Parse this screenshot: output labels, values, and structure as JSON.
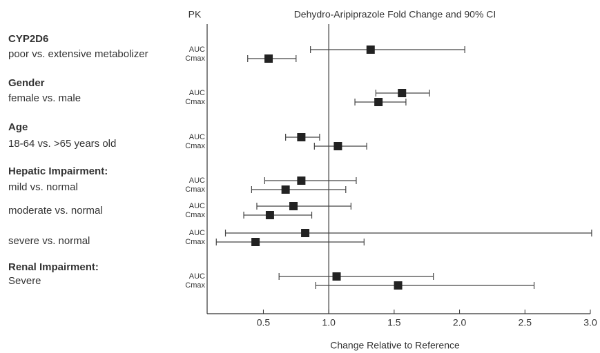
{
  "chart_data": {
    "type": "forest",
    "title": "Dehydro-Aripiprazole Fold Change and 90% CI",
    "pk_header": "PK",
    "x_label": "Change Relative to Reference",
    "xlim": [
      0.07,
      3.0
    ],
    "xticks": [
      0.5,
      {
        "value": 1,
        "label": "1.0"
      },
      1.5,
      {
        "value": 2,
        "label": "2.0"
      },
      2.5,
      {
        "value": 3,
        "label": "3.0"
      }
    ],
    "reference": 1,
    "color": "#222222",
    "groups": [
      {
        "heading": "CYP2D6",
        "items": [
          {
            "label": "poor vs. extensive metabolizer",
            "measures": [
              {
                "pk": "AUC",
                "value": 1.32,
                "low": 0.86,
                "high": 2.04
              },
              {
                "pk": "Cmax",
                "value": 0.54,
                "low": 0.38,
                "high": 0.75
              }
            ]
          }
        ]
      },
      {
        "heading": "Gender",
        "items": [
          {
            "label": "female vs. male",
            "measures": [
              {
                "pk": "AUC",
                "value": 1.56,
                "low": 1.36,
                "high": 1.77
              },
              {
                "pk": "Cmax",
                "value": 1.38,
                "low": 1.2,
                "high": 1.59
              }
            ]
          }
        ]
      },
      {
        "heading": "Age",
        "items": [
          {
            "label": "18-64 vs. >65 years old",
            "measures": [
              {
                "pk": "AUC",
                "value": 0.79,
                "low": 0.67,
                "high": 0.93
              },
              {
                "pk": "Cmax",
                "value": 1.07,
                "low": 0.89,
                "high": 1.29
              }
            ]
          }
        ]
      },
      {
        "heading": "Hepatic Impairment:",
        "items": [
          {
            "label": "mild vs. normal",
            "measures": [
              {
                "pk": "AUC",
                "value": 0.79,
                "low": 0.51,
                "high": 1.21
              },
              {
                "pk": "Cmax",
                "value": 0.67,
                "low": 0.41,
                "high": 1.13
              }
            ]
          },
          {
            "label": "moderate vs. normal",
            "measures": [
              {
                "pk": "AUC",
                "value": 0.73,
                "low": 0.45,
                "high": 1.17
              },
              {
                "pk": "Cmax",
                "value": 0.55,
                "low": 0.35,
                "high": 0.87
              }
            ]
          },
          {
            "label": "severe vs. normal",
            "measures": [
              {
                "pk": "AUC",
                "value": 0.82,
                "low": 0.21,
                "high": 3.01
              },
              {
                "pk": "Cmax",
                "value": 0.44,
                "low": 0.14,
                "high": 1.27
              }
            ]
          }
        ]
      },
      {
        "heading": "Renal Impairment:",
        "items": [
          {
            "label": "Severe",
            "measures": [
              {
                "pk": "AUC",
                "value": 1.06,
                "low": 0.62,
                "high": 1.8
              },
              {
                "pk": "Cmax",
                "value": 1.53,
                "low": 0.9,
                "high": 2.57
              }
            ]
          }
        ]
      }
    ]
  }
}
